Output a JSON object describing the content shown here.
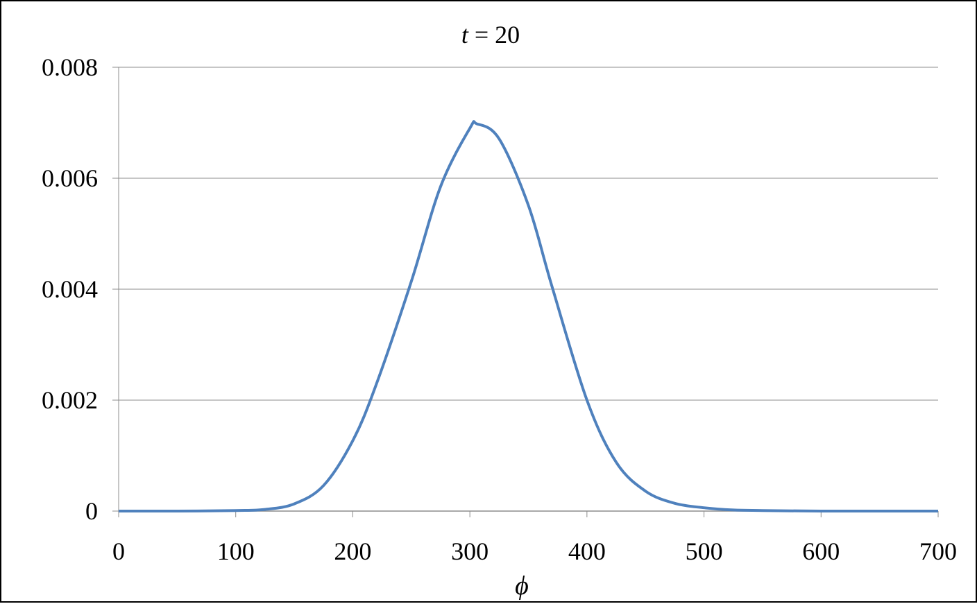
{
  "chart_data": {
    "type": "line",
    "title_var": "t",
    "title_rest": " = 20",
    "xlabel": "ϕ",
    "ylabel": "",
    "xlim": [
      0,
      700
    ],
    "ylim": [
      0,
      0.008
    ],
    "x_ticks": [
      0,
      100,
      200,
      300,
      400,
      500,
      600,
      700
    ],
    "x_tick_labels": [
      "0",
      "100",
      "200",
      "300",
      "400",
      "500",
      "600",
      "700"
    ],
    "y_ticks": [
      0,
      0.002,
      0.004,
      0.006,
      0.008
    ],
    "y_tick_labels": [
      "0",
      "0.002",
      "0.004",
      "0.006",
      "0.008"
    ],
    "grid": "horizontal",
    "series": [
      {
        "color": "#4f81bd",
        "x": [
          0,
          50,
          100,
          125,
          150,
          175,
          200,
          220,
          250,
          275,
          300,
          306,
          325,
          350,
          370,
          400,
          425,
          450,
          475,
          500,
          525,
          550,
          600,
          650,
          700
        ],
        "y": [
          0,
          0,
          1e-05,
          3e-05,
          0.00013,
          0.00046,
          0.00127,
          0.00228,
          0.00414,
          0.00585,
          0.0069,
          0.00698,
          0.00671,
          0.00551,
          0.00406,
          0.002,
          0.00088,
          0.00036,
          0.00014,
          6e-05,
          2e-05,
          1e-05,
          0,
          0,
          0
        ]
      }
    ]
  }
}
